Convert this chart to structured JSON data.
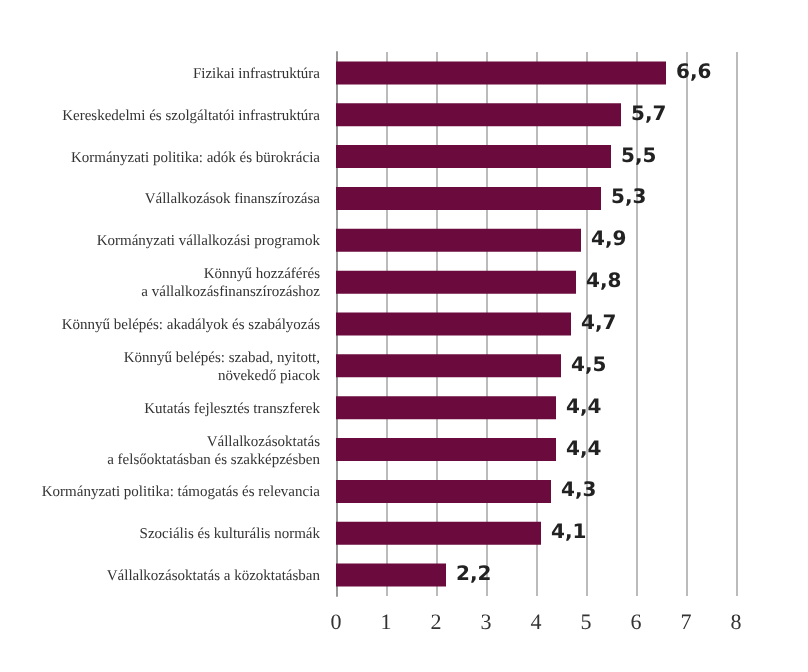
{
  "chart_data": {
    "type": "bar",
    "orientation": "horizontal",
    "categories": [
      "Fizikai infrastruktúra",
      "Kereskedelmi és szolgáltatói infrastruktúra",
      "Kormányzati politika: adók és bürokrácia",
      "Vállalkozások finanszírozása",
      "Kormányzati vállalkozási programok",
      "Könnyű hozzáférés\na vállalkozásfinanszírozáshoz",
      "Könnyű belépés: akadályok és szabályozás",
      "Könnyű belépés: szabad, nyitott,\nnövekedő piacok",
      "Kutatás fejlesztés transzferek",
      "Vállalkozásoktatás\na felsőoktatásban és szakképzésben",
      "Kormányzati politika: támogatás és relevancia",
      "Szociális és kulturális normák",
      "Vállalkozásoktatás a közoktatásban"
    ],
    "values": [
      6.6,
      5.7,
      5.5,
      5.3,
      4.9,
      4.8,
      4.7,
      4.5,
      4.4,
      4.4,
      4.3,
      4.1,
      2.2
    ],
    "value_labels": [
      "6,6",
      "5,7",
      "5,5",
      "5,3",
      "4,9",
      "4,8",
      "4,7",
      "4,5",
      "4,4",
      "4,4",
      "4,3",
      "4,1",
      "2,2"
    ],
    "color": "#6b0a3c",
    "xlim": [
      0,
      8
    ],
    "xticks": [
      0,
      1,
      2,
      3,
      4,
      5,
      6,
      7,
      8
    ],
    "grid": "x"
  }
}
